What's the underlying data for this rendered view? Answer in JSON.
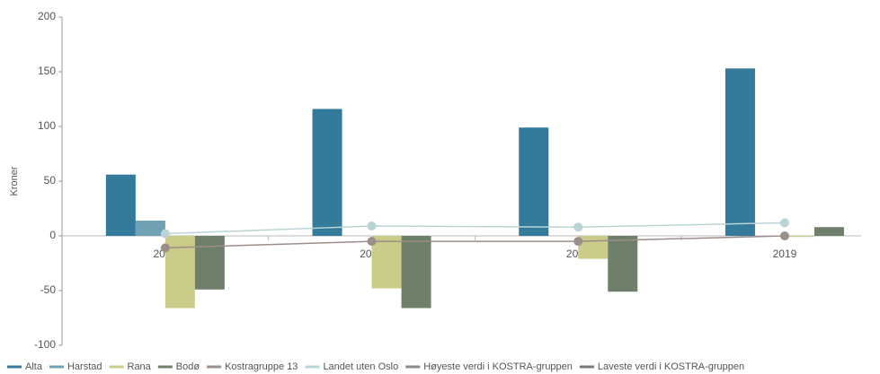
{
  "chart_data": {
    "type": "bar",
    "ylabel": "Kroner",
    "categories": [
      "2016",
      "2017",
      "2018",
      "2019"
    ],
    "ylim": [
      -100,
      200
    ],
    "yticks": [
      -100,
      -50,
      0,
      50,
      100,
      150,
      200
    ],
    "grid": false,
    "legend": "bottom",
    "series": [
      {
        "name": "Alta",
        "type": "bar",
        "color": "#347a9a",
        "values": [
          56,
          116,
          99,
          153
        ]
      },
      {
        "name": "Harstad",
        "type": "bar",
        "color": "#6fa0b4",
        "values": [
          14,
          null,
          null,
          null
        ]
      },
      {
        "name": "Rana",
        "type": "bar",
        "color": "#cccc8a",
        "values": [
          -66,
          -48,
          -21,
          -1
        ]
      },
      {
        "name": "Bodø",
        "type": "bar",
        "color": "#6e806a",
        "values": [
          -49,
          -66,
          -51,
          8
        ]
      },
      {
        "name": "Kostragruppe 13",
        "type": "line",
        "color": "#9c8e88",
        "values": [
          -11,
          -5,
          -5,
          0
        ]
      },
      {
        "name": "Landet uten Oslo",
        "type": "line",
        "color": "#b9d4d4",
        "values": [
          2,
          9,
          8,
          12
        ]
      },
      {
        "name": "Høyeste verdi i KOSTRA-gruppen",
        "type": "line",
        "color": "#8a8a8a",
        "values": [
          null,
          null,
          null,
          null
        ]
      },
      {
        "name": "Laveste verdi i KOSTRA-gruppen",
        "type": "line",
        "color": "#7a7a7a",
        "values": [
          null,
          null,
          null,
          null
        ]
      }
    ]
  }
}
